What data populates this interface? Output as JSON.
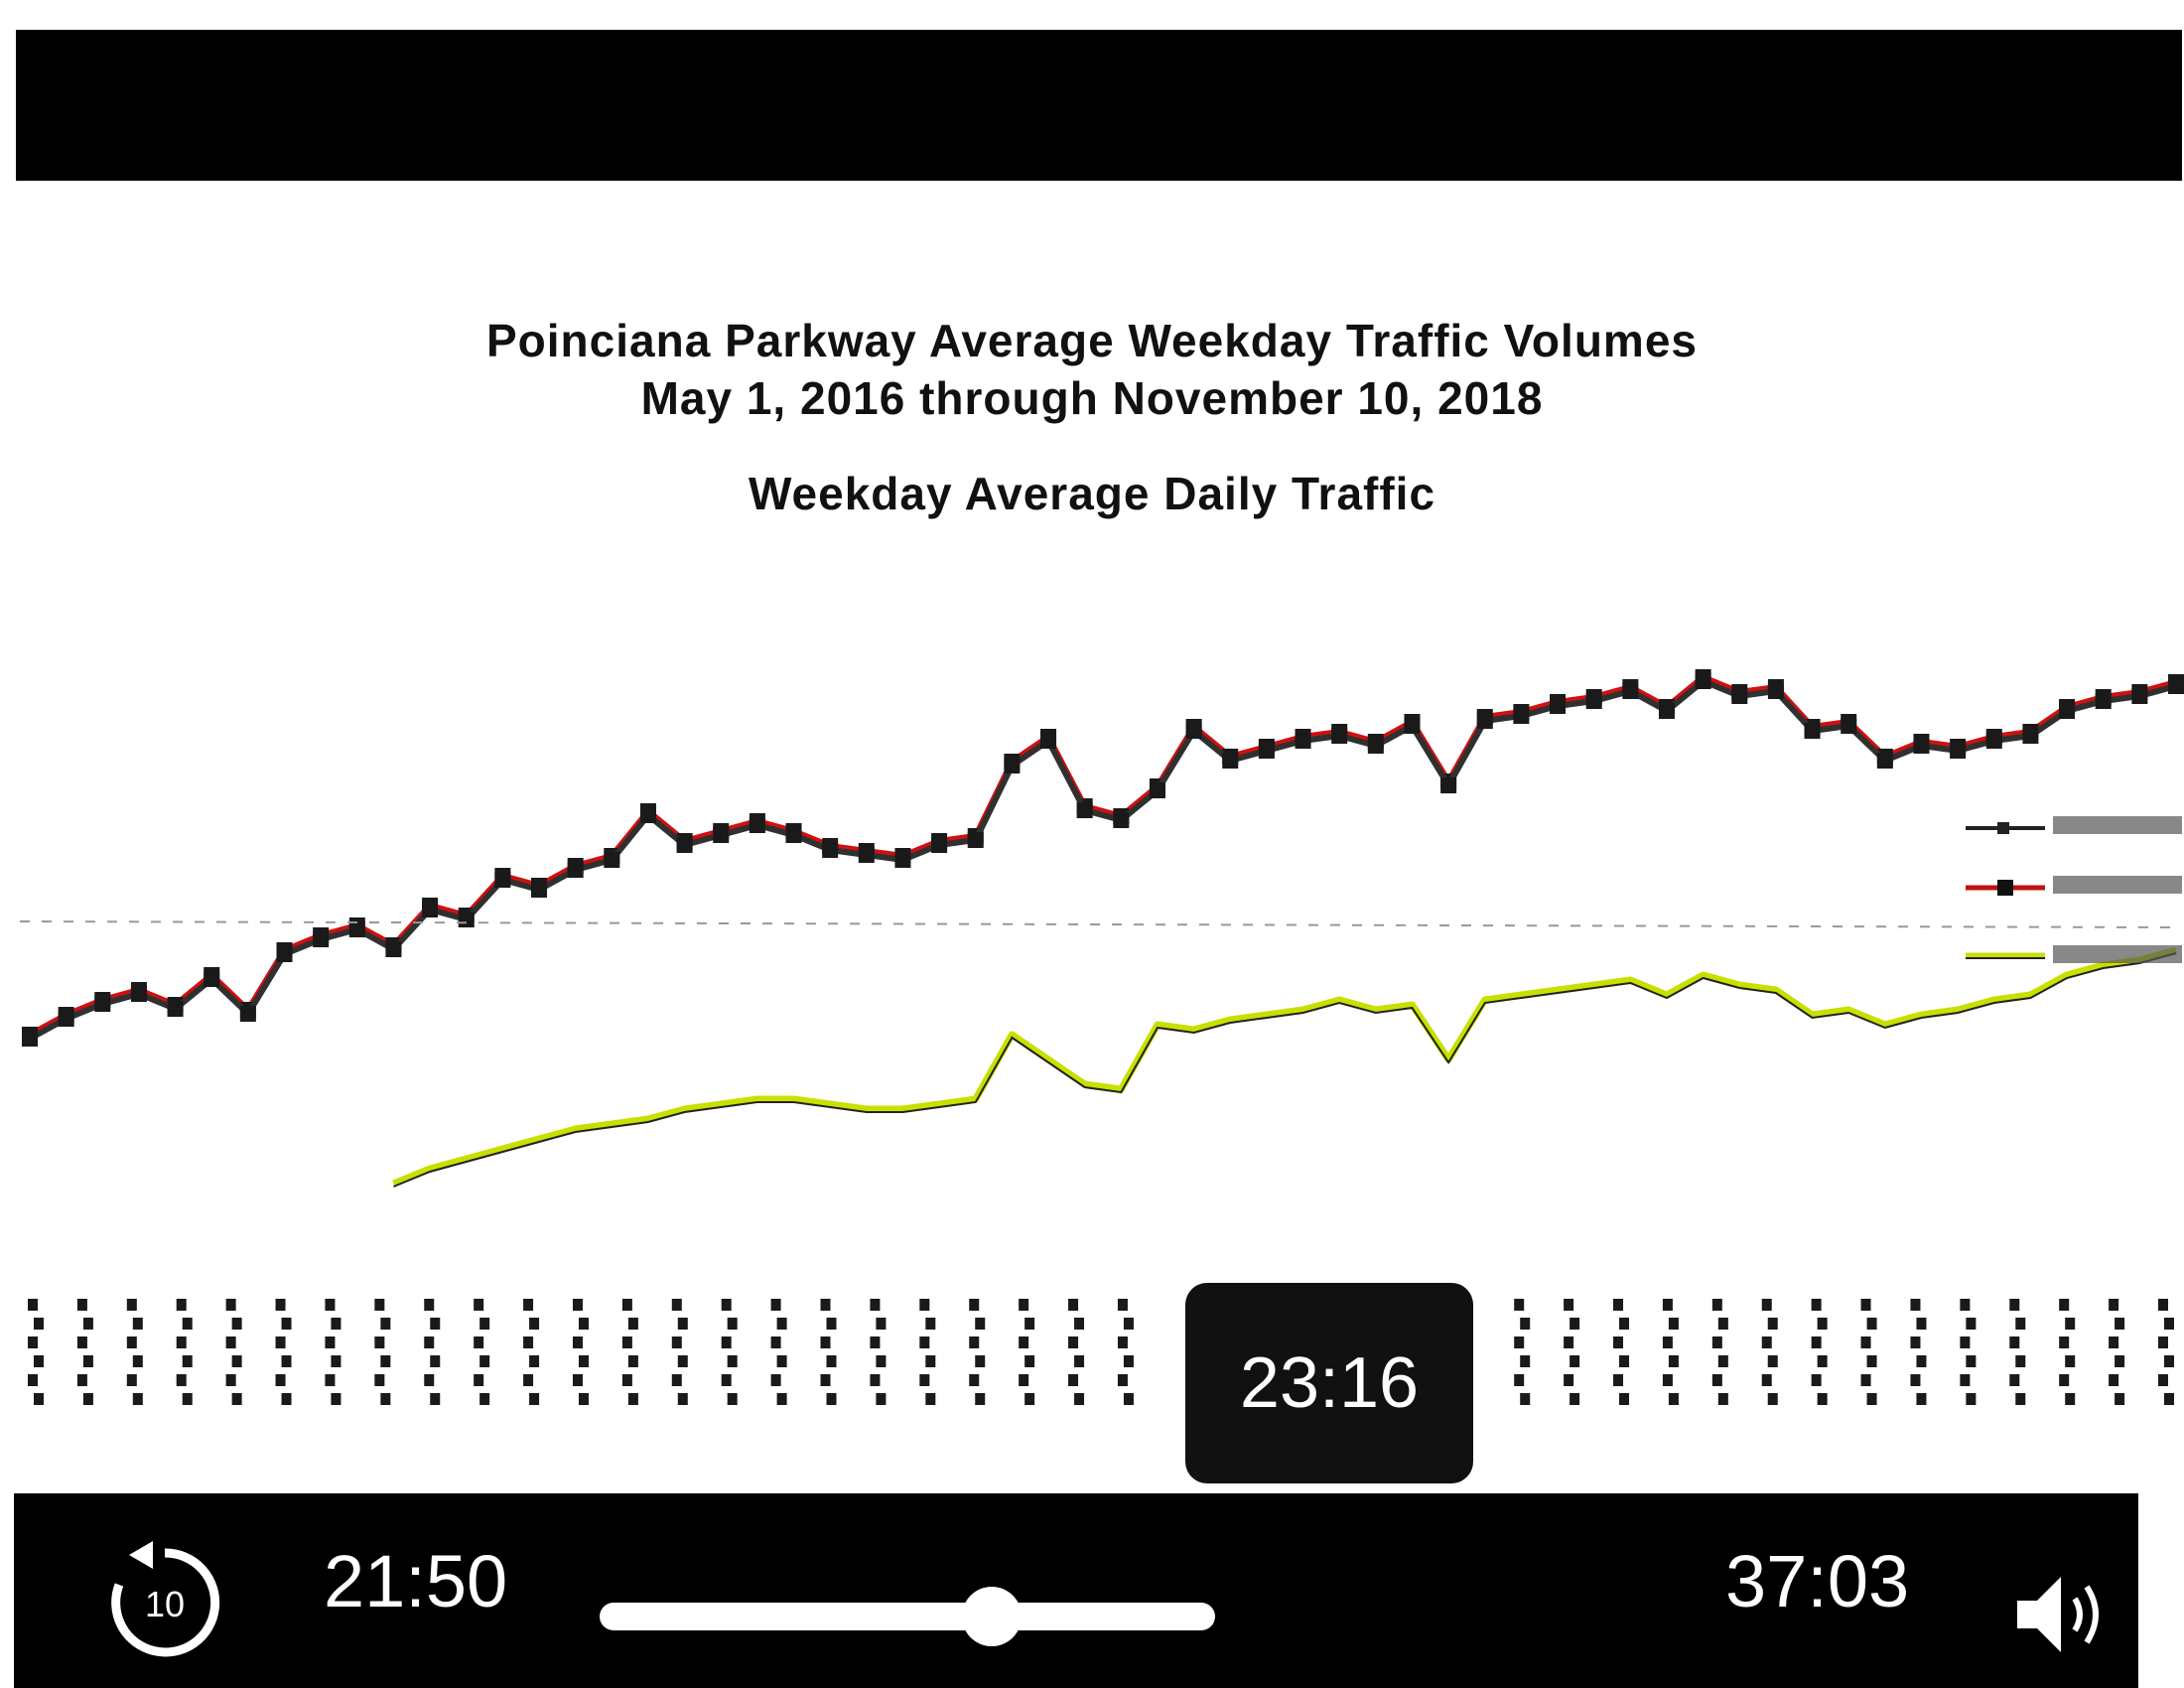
{
  "slide": {
    "title_line1": "Poinciana Parkway Average Weekday Traffic Volumes",
    "title_line2": "May 1, 2016 through November 10, 2018",
    "subtitle": "Weekday Average Daily Traffic"
  },
  "chart_data": {
    "type": "line",
    "title": "Weekday Average Daily Traffic",
    "xlabel": "",
    "ylabel": "",
    "grid": false,
    "legend_placement": "right",
    "series": [
      {
        "name": "",
        "color": "#d01010",
        "marker": "square",
        "values": [
          40,
          44,
          47,
          49,
          46,
          52,
          45,
          57,
          60,
          62,
          58,
          66,
          64,
          72,
          70,
          74,
          76,
          85,
          79,
          81,
          83,
          81,
          78,
          77,
          76,
          79,
          80,
          95,
          100,
          86,
          84,
          90,
          102,
          96,
          98,
          100,
          101,
          99,
          103,
          91,
          104,
          105,
          107,
          108,
          110,
          106,
          112,
          109,
          110,
          102,
          103,
          96,
          99,
          98,
          100,
          101,
          106,
          108,
          109,
          111
        ]
      },
      {
        "name": "",
        "color": "#303030",
        "marker": "square",
        "values": [
          40,
          44,
          47,
          49,
          46,
          52,
          45,
          57,
          60,
          62,
          58,
          66,
          64,
          72,
          70,
          74,
          76,
          85,
          79,
          81,
          83,
          81,
          78,
          77,
          76,
          79,
          80,
          95,
          100,
          86,
          84,
          90,
          102,
          96,
          98,
          100,
          101,
          99,
          103,
          91,
          104,
          105,
          107,
          108,
          110,
          106,
          112,
          109,
          110,
          102,
          103,
          96,
          99,
          98,
          100,
          101,
          106,
          108,
          109,
          111
        ]
      },
      {
        "name": "",
        "color": "#c8e000",
        "marker": "none",
        "values": [
          null,
          null,
          null,
          null,
          null,
          null,
          null,
          null,
          null,
          null,
          10,
          13,
          15,
          17,
          19,
          21,
          22,
          23,
          25,
          26,
          27,
          27,
          26,
          25,
          25,
          26,
          27,
          40,
          35,
          30,
          29,
          42,
          41,
          43,
          44,
          45,
          47,
          45,
          46,
          35,
          47,
          48,
          49,
          50,
          51,
          48,
          52,
          50,
          49,
          44,
          45,
          42,
          44,
          45,
          47,
          48,
          52,
          54,
          55,
          57
        ]
      }
    ]
  },
  "player": {
    "hover_time": "23:16",
    "elapsed": "21:50",
    "duration": "37:03",
    "progress": 0.589,
    "replay_label": "10",
    "icons": {
      "replay": "replay-10-icon",
      "volume": "volume-icon"
    }
  }
}
